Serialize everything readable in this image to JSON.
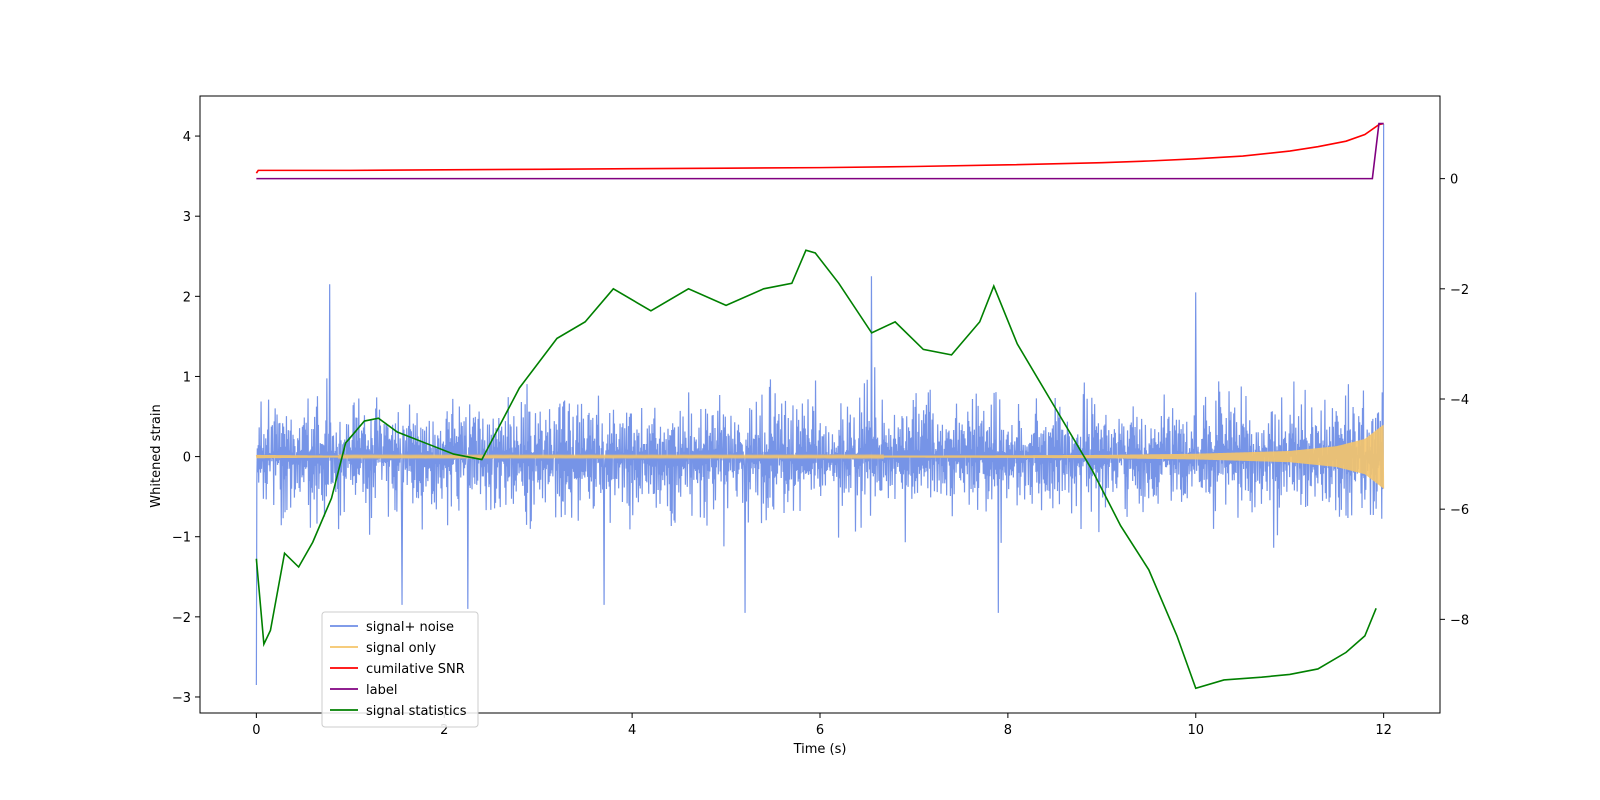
{
  "chart_data": {
    "type": "line",
    "title": "",
    "xlabel": "Time (s)",
    "ylabel": "Whitened strain",
    "y2label": "",
    "xlim": [
      -0.6,
      12.6
    ],
    "ylim": [
      -3.2,
      4.5
    ],
    "y2lim": [
      -9.7,
      1.5
    ],
    "x_ticks": [
      0,
      2,
      4,
      6,
      8,
      10,
      12
    ],
    "y_ticks": [
      -3,
      -2,
      -1,
      0,
      1,
      2,
      3,
      4
    ],
    "y2_ticks": [
      -8,
      -6,
      -4,
      -2,
      0
    ],
    "legend_position": "lower-left",
    "grid": false,
    "legend": [
      {
        "label": "signal+ noise",
        "color": "#6f8ee6"
      },
      {
        "label": "signal only",
        "color": "#f5c46a"
      },
      {
        "label": "cumilative SNR",
        "color": "#ff0000"
      },
      {
        "label": "label",
        "color": "#800080"
      },
      {
        "label": "signal statistics",
        "color": "#008000"
      }
    ],
    "series": [
      {
        "name": "signal+ noise",
        "axis": "left",
        "color": "#6f8ee6",
        "x_range": [
          0,
          12
        ],
        "envelope": [
          -1.6,
          1.6
        ],
        "spikes": [
          [
            0.0,
            -2.85
          ],
          [
            0.78,
            2.15
          ],
          [
            1.55,
            -1.85
          ],
          [
            2.25,
            -1.9
          ],
          [
            3.7,
            -1.85
          ],
          [
            5.2,
            -1.95
          ],
          [
            6.55,
            2.25
          ],
          [
            7.9,
            -1.95
          ],
          [
            10.0,
            2.05
          ],
          [
            12.0,
            4.15
          ]
        ]
      },
      {
        "name": "signal only",
        "axis": "left",
        "color": "#f5c46a",
        "x": [
          0,
          1,
          2,
          3,
          4,
          5,
          6,
          7,
          8,
          9,
          10,
          11,
          11.5,
          11.8,
          12.0
        ],
        "amplitude": [
          0.02,
          0.01,
          0.01,
          0.01,
          0.01,
          0.01,
          0.01,
          0.012,
          0.015,
          0.02,
          0.035,
          0.07,
          0.13,
          0.22,
          0.4
        ]
      },
      {
        "name": "cumilative SNR",
        "axis": "right",
        "color": "#ff0000",
        "x": [
          0.0,
          0.02,
          1,
          2,
          3,
          4,
          5,
          6,
          7,
          8,
          9,
          9.5,
          10,
          10.5,
          11,
          11.3,
          11.6,
          11.8,
          11.95,
          12.0
        ],
        "y": [
          0.1,
          0.15,
          0.15,
          0.16,
          0.17,
          0.18,
          0.19,
          0.2,
          0.22,
          0.25,
          0.29,
          0.32,
          0.36,
          0.41,
          0.5,
          0.58,
          0.68,
          0.8,
          0.98,
          1.0
        ]
      },
      {
        "name": "label",
        "axis": "right",
        "color": "#800080",
        "x": [
          0,
          11.88,
          11.95,
          12.0
        ],
        "y": [
          0,
          0,
          1.0,
          1.0
        ]
      },
      {
        "name": "signal statistics",
        "axis": "right",
        "color": "#008000",
        "x": [
          0.0,
          0.08,
          0.15,
          0.3,
          0.45,
          0.6,
          0.8,
          0.95,
          1.15,
          1.3,
          1.5,
          1.8,
          2.1,
          2.4,
          2.8,
          3.2,
          3.5,
          3.8,
          4.2,
          4.6,
          5.0,
          5.4,
          5.7,
          5.85,
          5.95,
          6.2,
          6.55,
          6.8,
          7.1,
          7.4,
          7.7,
          7.85,
          8.1,
          8.5,
          8.9,
          9.2,
          9.5,
          9.8,
          10.0,
          10.3,
          10.7,
          11.0,
          11.3,
          11.6,
          11.8,
          11.92
        ],
        "y": [
          -6.9,
          -8.45,
          -8.2,
          -6.8,
          -7.05,
          -6.6,
          -5.8,
          -4.8,
          -4.4,
          -4.35,
          -4.6,
          -4.8,
          -5.0,
          -5.1,
          -3.8,
          -2.9,
          -2.6,
          -2.0,
          -2.4,
          -2.0,
          -2.3,
          -2.0,
          -1.9,
          -1.3,
          -1.35,
          -1.9,
          -2.8,
          -2.6,
          -3.1,
          -3.2,
          -2.6,
          -1.95,
          -3.0,
          -4.15,
          -5.3,
          -6.3,
          -7.1,
          -8.3,
          -9.25,
          -9.1,
          -9.05,
          -9.0,
          -8.9,
          -8.6,
          -8.3,
          -7.8
        ]
      }
    ]
  }
}
